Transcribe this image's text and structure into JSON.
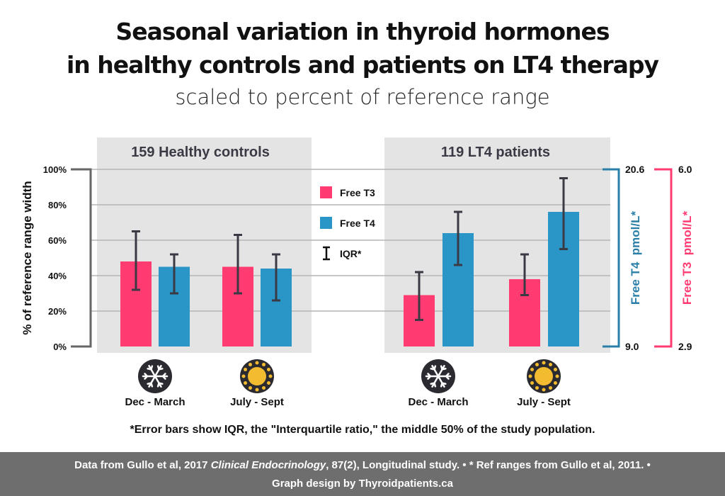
{
  "title_line1": "Seasonal variation in thyroid hormones",
  "title_line2": "in healthy controls and patients on LT4 therapy",
  "subtitle": "scaled to percent of reference range",
  "note": "*Error bars show IQR, the \"Interquartile ratio,\" the middle 50% of the study population.",
  "footer": {
    "line1_a": "Data from Gullo et al, 2017 ",
    "line1_journal": "Clinical Endocrinology",
    "line1_b": ", 87(2), Longitudinal study. • * Ref ranges from Gullo et al, 2011. •",
    "line2": "Graph design by Thyroidpatients.ca"
  },
  "chart_data": {
    "type": "bar",
    "ylabel": "% of reference range width",
    "ylim": [
      0,
      100
    ],
    "yticks": [
      "0%",
      "20%",
      "40%",
      "60%",
      "80%",
      "100%"
    ],
    "grid": true,
    "legend": {
      "placement": "center",
      "entries": [
        "Free T3",
        "Free T4",
        "IQR*"
      ]
    },
    "colors": {
      "Free T3": "#ff3b72",
      "Free T4": "#2a96c8",
      "panel": "#e4e4e4",
      "errorbar": "#3a3a45"
    },
    "panels": [
      {
        "label": "159 Healthy controls",
        "categories": [
          "Dec - March",
          "July - Sept"
        ],
        "series": [
          {
            "name": "Free T3",
            "values": [
              48,
              45
            ],
            "iqr": [
              [
                32,
                65
              ],
              [
                30,
                63
              ]
            ]
          },
          {
            "name": "Free T4",
            "values": [
              45,
              44
            ],
            "iqr": [
              [
                30,
                52
              ],
              [
                26,
                52
              ]
            ]
          }
        ]
      },
      {
        "label": "119 LT4 patients",
        "categories": [
          "Dec - March",
          "July - Sept"
        ],
        "series": [
          {
            "name": "Free T3",
            "values": [
              29,
              38
            ],
            "iqr": [
              [
                15,
                42
              ],
              [
                29,
                52
              ]
            ]
          },
          {
            "name": "Free T4",
            "values": [
              64,
              76
            ],
            "iqr": [
              [
                46,
                76
              ],
              [
                55,
                95
              ]
            ]
          }
        ]
      }
    ],
    "category_icons": [
      "snowflake-icon",
      "sun-icon"
    ],
    "secondary_axes": [
      {
        "label": "Free T4  pmol/L*",
        "min": "9.0",
        "max": "20.6",
        "color": "#2a7fa8"
      },
      {
        "label": "Free T3  pmol/L*",
        "min": "2.9",
        "max": "6.0",
        "color": "#ff3b72"
      }
    ]
  }
}
